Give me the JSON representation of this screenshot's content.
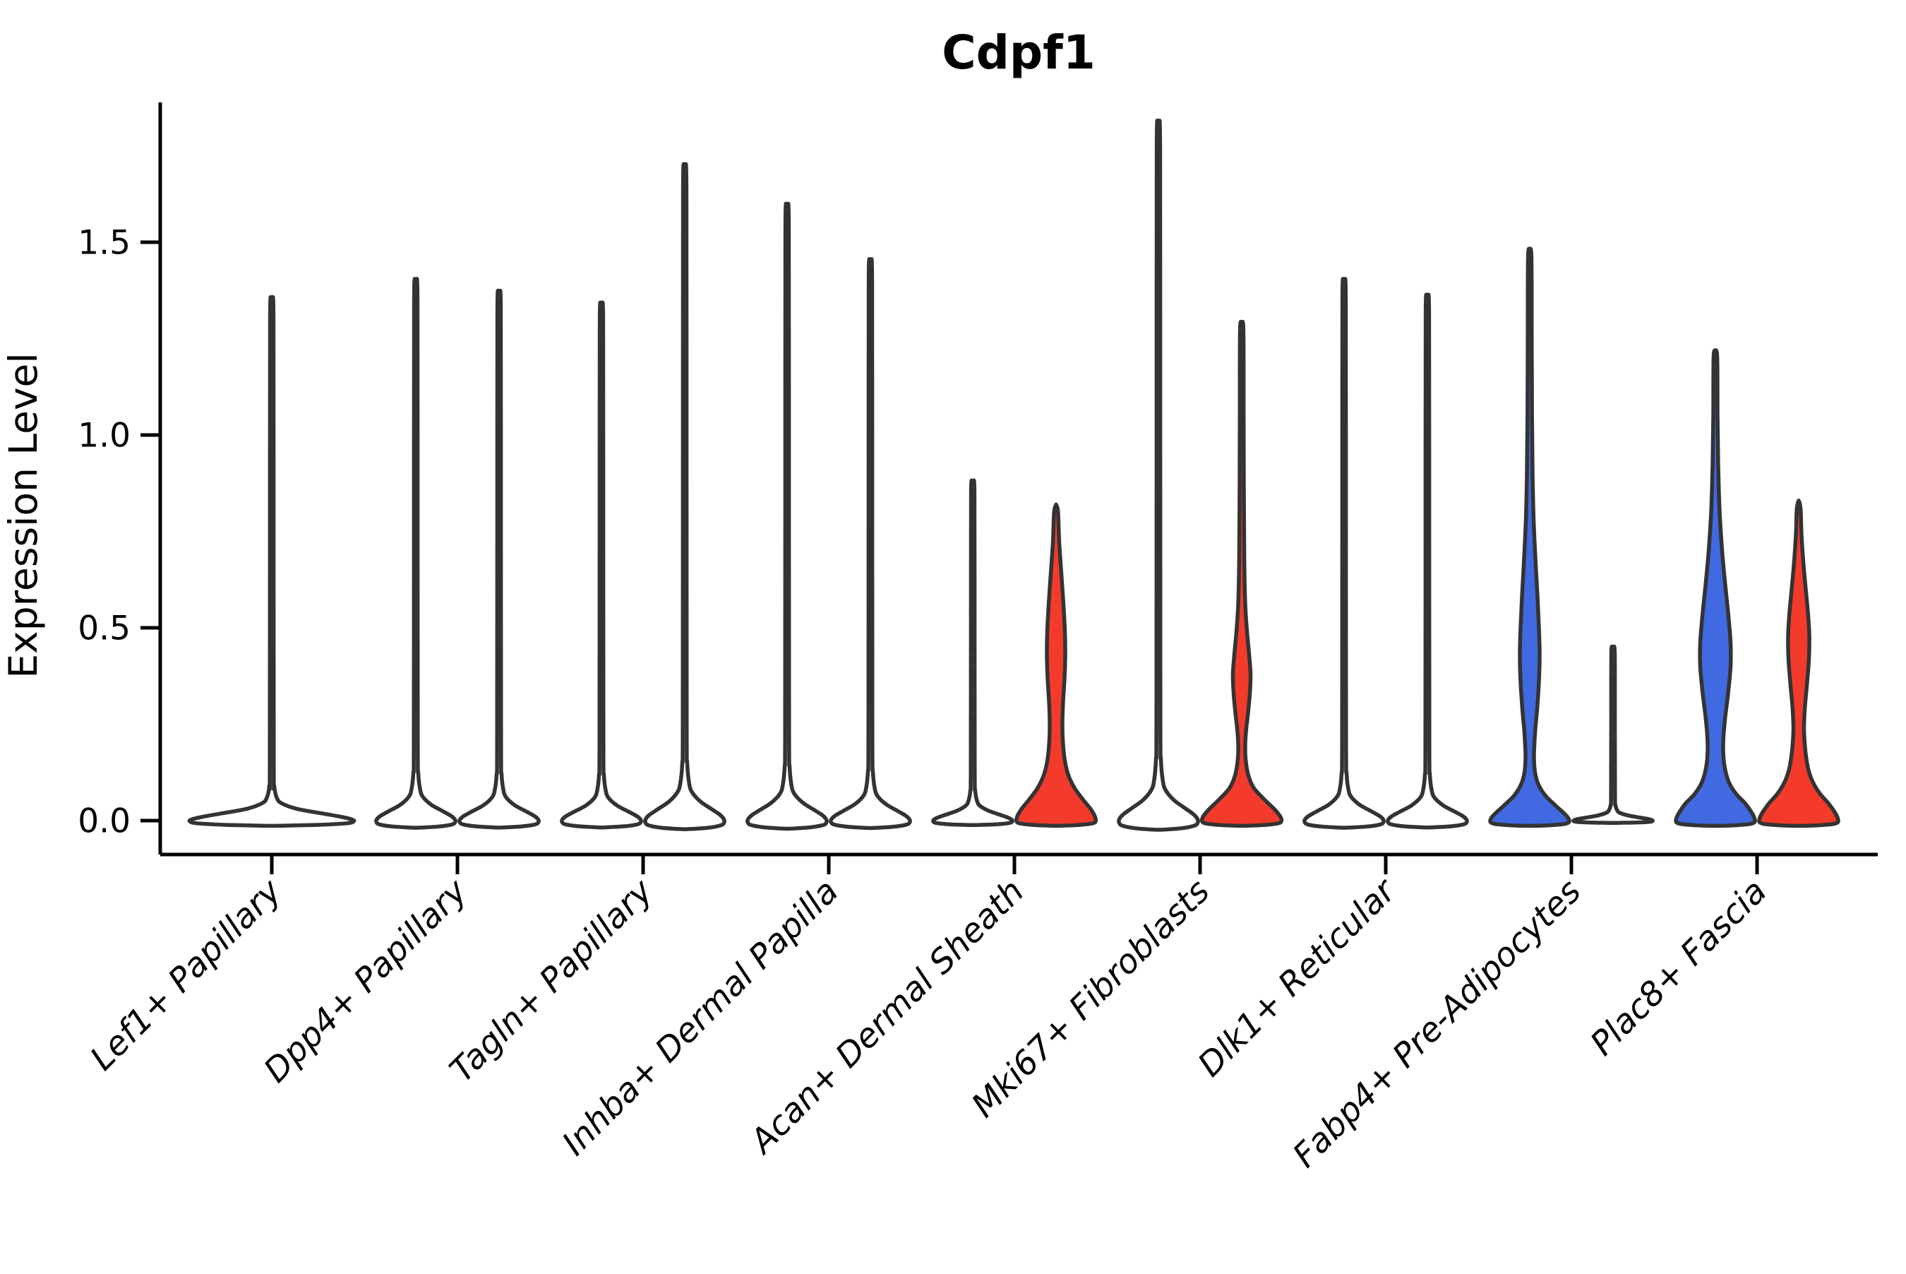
{
  "chart_data": {
    "type": "violin",
    "title": "Cdpf1",
    "ylabel": "Expression Level",
    "xlabel": "",
    "ylim": [
      -0.09,
      1.86
    ],
    "yticks": [
      {
        "value": 0.0,
        "label": "0.0"
      },
      {
        "value": 0.5,
        "label": "0.5"
      },
      {
        "value": 1.0,
        "label": "1.0"
      },
      {
        "value": 1.5,
        "label": "1.5"
      }
    ],
    "grid": false,
    "legend": "none",
    "split_violin": true,
    "colors": {
      "left_split_fill": "#4169E1",
      "right_split_fill": "#F43B2B",
      "unexpressed_fill": "#FFFFFF",
      "outline": "#333333",
      "axis": "#000000",
      "jitter_point": "#3A3A3A"
    },
    "categories": [
      {
        "label": "Lef1+ Papillary",
        "violins": [
          {
            "side": "full",
            "fill": "unexpressed_fill",
            "max_expression": 1.32,
            "profile": "single_1_32"
          }
        ]
      },
      {
        "label": "Dpp4+ Papillary",
        "violins": [
          {
            "side": "left",
            "fill": "unexpressed_fill",
            "max_expression": 1.37,
            "profile": "spike"
          },
          {
            "side": "right",
            "fill": "unexpressed_fill",
            "max_expression": 1.34,
            "profile": "spike"
          }
        ]
      },
      {
        "label": "Tagln+ Papillary",
        "violins": [
          {
            "side": "left",
            "fill": "unexpressed_fill",
            "max_expression": 1.31,
            "profile": "spike"
          },
          {
            "side": "right",
            "fill": "unexpressed_fill",
            "max_expression": 1.66,
            "profile": "spike"
          }
        ]
      },
      {
        "label": "Inhba+ Dermal Papilla",
        "violins": [
          {
            "side": "left",
            "fill": "unexpressed_fill",
            "max_expression": 1.56,
            "profile": "spike"
          },
          {
            "side": "right",
            "fill": "unexpressed_fill",
            "max_expression": 1.42,
            "profile": "spike"
          }
        ]
      },
      {
        "label": "Acan+ Dermal Sheath",
        "violins": [
          {
            "side": "left",
            "fill": "unexpressed_fill",
            "max_expression": 0.86,
            "profile": "spike"
          },
          {
            "side": "right",
            "fill": "right_split_fill",
            "max_expression": 0.82,
            "profile": "acan_red"
          }
        ]
      },
      {
        "label": "Mki67+ Fibroblasts",
        "violins": [
          {
            "side": "left",
            "fill": "unexpressed_fill",
            "max_expression": 1.77,
            "profile": "spike"
          },
          {
            "side": "right",
            "fill": "right_split_fill",
            "max_expression": 1.29,
            "profile": "mki67_red"
          }
        ]
      },
      {
        "label": "Dlk1+ Reticular",
        "violins": [
          {
            "side": "left",
            "fill": "unexpressed_fill",
            "max_expression": 1.37,
            "profile": "spike"
          },
          {
            "side": "right",
            "fill": "unexpressed_fill",
            "max_expression": 1.33,
            "profile": "spike"
          }
        ]
      },
      {
        "label": "Fabp4+ Pre-Adipocytes",
        "violins": [
          {
            "side": "left",
            "fill": "left_split_fill",
            "max_expression": 1.48,
            "profile": "fabp4_blue"
          },
          {
            "side": "right",
            "fill": "unexpressed_fill",
            "max_expression": 0.44,
            "profile": "spike"
          }
        ]
      },
      {
        "label": "Plac8+ Fascia",
        "violins": [
          {
            "side": "left",
            "fill": "left_split_fill",
            "max_expression": 1.22,
            "profile": "plac8_blue"
          },
          {
            "side": "right",
            "fill": "right_split_fill",
            "max_expression": 0.83,
            "profile": "plac8_red"
          }
        ]
      }
    ],
    "jitter_points": [
      {
        "category_index": 4,
        "side": "left",
        "values": [
          0.54,
          0.49,
          0.43,
          0.4,
          0.33,
          0.28,
          0.21
        ]
      },
      {
        "category_index": 7,
        "side": "right",
        "values": [
          0.43,
          0.415,
          0.38,
          0.31,
          0.295,
          0.225,
          0.215,
          0.14
        ]
      }
    ],
    "profiles": {
      "spike": [
        [
          1.0,
          0
        ],
        [
          0.99,
          2.4
        ],
        [
          0.55,
          2.6
        ],
        [
          0.14,
          2.8
        ],
        [
          0.09,
          3.5
        ],
        [
          0.06,
          6
        ],
        [
          0.045,
          10
        ],
        [
          0.03,
          22
        ],
        [
          0.018,
          38
        ],
        [
          0.009,
          50
        ],
        [
          0.003,
          55
        ],
        [
          -0.002,
          56
        ],
        [
          -0.007,
          52
        ],
        [
          -0.011,
          34
        ],
        [
          -0.013,
          10
        ],
        [
          -0.0135,
          0
        ]
      ],
      "single_1_32": [
        [
          1.0,
          0
        ],
        [
          0.992,
          2.4
        ],
        [
          0.53,
          2.6
        ],
        [
          0.106,
          2.8
        ],
        [
          0.068,
          3.5
        ],
        [
          0.045,
          7
        ],
        [
          0.034,
          14
        ],
        [
          0.023,
          36
        ],
        [
          0.014,
          72
        ],
        [
          0.007,
          100
        ],
        [
          0.002,
          114
        ],
        [
          -0.0015,
          116
        ],
        [
          -0.0053,
          106
        ],
        [
          -0.0083,
          66
        ],
        [
          -0.0098,
          18
        ],
        [
          -0.0102,
          0
        ]
      ],
      "acan_red": [
        [
          0.82,
          0
        ],
        [
          0.8,
          2.8
        ],
        [
          0.72,
          4.5
        ],
        [
          0.64,
          7.5
        ],
        [
          0.56,
          10.5
        ],
        [
          0.49,
          12.5
        ],
        [
          0.43,
          13
        ],
        [
          0.37,
          12
        ],
        [
          0.31,
          10
        ],
        [
          0.26,
          9
        ],
        [
          0.21,
          9.5
        ],
        [
          0.16,
          12
        ],
        [
          0.12,
          17
        ],
        [
          0.085,
          26
        ],
        [
          0.055,
          38
        ],
        [
          0.03,
          49
        ],
        [
          0.015,
          54
        ],
        [
          0.005,
          56
        ],
        [
          -0.002,
          56
        ],
        [
          -0.007,
          52
        ],
        [
          -0.011,
          34
        ],
        [
          -0.013,
          10
        ],
        [
          -0.0135,
          0
        ]
      ],
      "mki67_red": [
        [
          1.29,
          0
        ],
        [
          1.27,
          2.4
        ],
        [
          1.05,
          2.7
        ],
        [
          0.85,
          3
        ],
        [
          0.68,
          3.6
        ],
        [
          0.56,
          5
        ],
        [
          0.49,
          7.5
        ],
        [
          0.43,
          10.5
        ],
        [
          0.38,
          12.5
        ],
        [
          0.33,
          11.5
        ],
        [
          0.28,
          9
        ],
        [
          0.24,
          6.5
        ],
        [
          0.2,
          5
        ],
        [
          0.16,
          5.5
        ],
        [
          0.12,
          9
        ],
        [
          0.085,
          17
        ],
        [
          0.055,
          32
        ],
        [
          0.03,
          46
        ],
        [
          0.015,
          53
        ],
        [
          0.005,
          56
        ],
        [
          -0.002,
          56
        ],
        [
          -0.007,
          52
        ],
        [
          -0.011,
          34
        ],
        [
          -0.013,
          10
        ],
        [
          -0.0135,
          0
        ]
      ],
      "fabp4_blue": [
        [
          1.48,
          0
        ],
        [
          1.46,
          2.4
        ],
        [
          1.25,
          2.8
        ],
        [
          1.05,
          3.2
        ],
        [
          0.9,
          4
        ],
        [
          0.78,
          5.5
        ],
        [
          0.68,
          8
        ],
        [
          0.58,
          11
        ],
        [
          0.5,
          13
        ],
        [
          0.43,
          14
        ],
        [
          0.36,
          13
        ],
        [
          0.29,
          10.5
        ],
        [
          0.24,
          8
        ],
        [
          0.195,
          6.5
        ],
        [
          0.16,
          6
        ],
        [
          0.125,
          7.5
        ],
        [
          0.095,
          12
        ],
        [
          0.065,
          22
        ],
        [
          0.04,
          36
        ],
        [
          0.02,
          48
        ],
        [
          0.008,
          54
        ],
        [
          0.0,
          56
        ],
        [
          -0.005,
          55
        ],
        [
          -0.009,
          48
        ],
        [
          -0.012,
          28
        ],
        [
          -0.0135,
          0
        ]
      ],
      "plac8_blue": [
        [
          1.22,
          0
        ],
        [
          1.2,
          2.6
        ],
        [
          1.05,
          3
        ],
        [
          0.92,
          4
        ],
        [
          0.8,
          6
        ],
        [
          0.7,
          9.5
        ],
        [
          0.61,
          14
        ],
        [
          0.53,
          18.5
        ],
        [
          0.46,
          21.5
        ],
        [
          0.4,
          21.5
        ],
        [
          0.33,
          18
        ],
        [
          0.27,
          14
        ],
        [
          0.22,
          11.5
        ],
        [
          0.18,
          11
        ],
        [
          0.14,
          13
        ],
        [
          0.1,
          19
        ],
        [
          0.07,
          29
        ],
        [
          0.045,
          42
        ],
        [
          0.022,
          51
        ],
        [
          0.008,
          55
        ],
        [
          0,
          56
        ],
        [
          -0.005,
          55
        ],
        [
          -0.009,
          48
        ],
        [
          -0.012,
          28
        ],
        [
          -0.0135,
          0
        ]
      ],
      "plac8_red": [
        [
          0.83,
          0
        ],
        [
          0.81,
          2.6
        ],
        [
          0.74,
          4
        ],
        [
          0.66,
          7
        ],
        [
          0.59,
          10.5
        ],
        [
          0.53,
          13.5
        ],
        [
          0.48,
          15
        ],
        [
          0.42,
          14.5
        ],
        [
          0.36,
          12
        ],
        [
          0.31,
          9.5
        ],
        [
          0.27,
          8
        ],
        [
          0.235,
          7.5
        ],
        [
          0.2,
          8.5
        ],
        [
          0.165,
          10.5
        ],
        [
          0.13,
          14
        ],
        [
          0.1,
          20
        ],
        [
          0.07,
          30
        ],
        [
          0.045,
          42
        ],
        [
          0.022,
          51
        ],
        [
          0.008,
          55
        ],
        [
          0,
          56
        ],
        [
          -0.005,
          55
        ],
        [
          -0.009,
          48
        ],
        [
          -0.012,
          28
        ],
        [
          -0.0135,
          0
        ]
      ]
    }
  }
}
